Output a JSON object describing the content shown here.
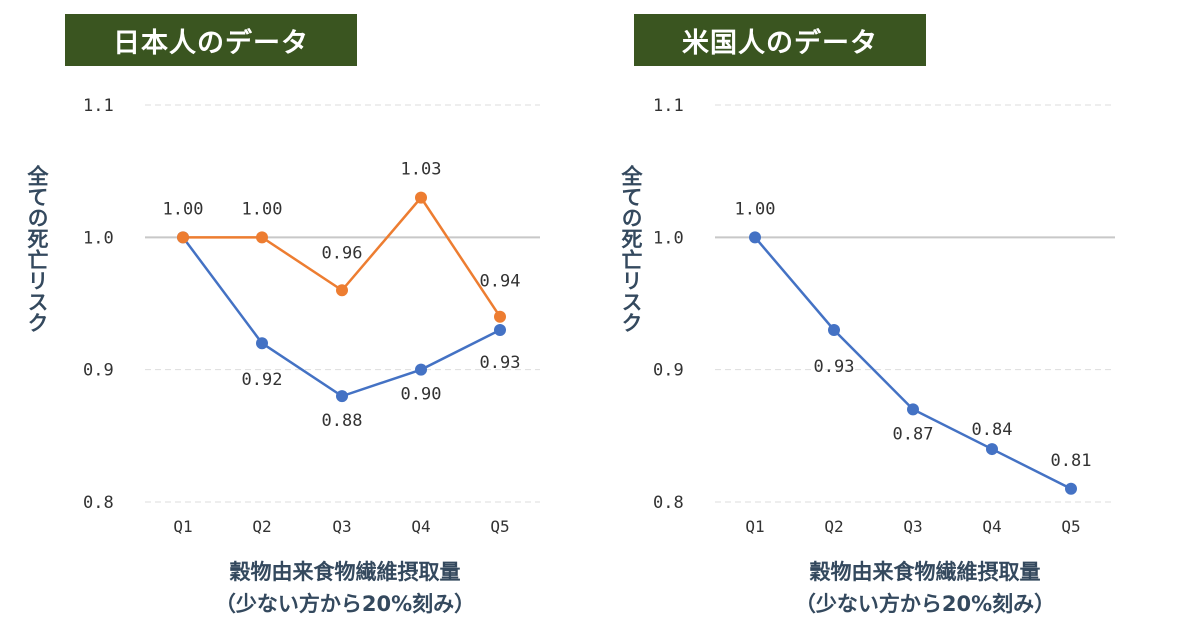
{
  "chart_data": [
    {
      "type": "line",
      "title": "日本人のデータ",
      "ylabel": "全ての死亡リスク",
      "xlabel": "穀物由来食物繊維摂取量",
      "xlabel_sub": "（少ない方から20%刻み）",
      "categories": [
        "Q1",
        "Q2",
        "Q3",
        "Q4",
        "Q5"
      ],
      "ylim": [
        0.8,
        1.1
      ],
      "yticks": [
        "0.8",
        "0.9",
        "1.0",
        "1.1"
      ],
      "grid": true,
      "reference_line": 1.0,
      "series": [
        {
          "color": "#4472c4",
          "values": [
            1.0,
            0.92,
            0.88,
            0.9,
            0.93
          ],
          "labels": [
            "",
            "0.92",
            "0.88",
            "0.90",
            "0.93"
          ]
        },
        {
          "color": "#ed7d31",
          "values": [
            1.0,
            1.0,
            0.96,
            1.03,
            0.94
          ],
          "labels": [
            "1.00",
            "1.00",
            "0.96",
            "1.03",
            "0.94"
          ]
        }
      ]
    },
    {
      "type": "line",
      "title": "米国人のデータ",
      "ylabel": "全ての死亡リスク",
      "xlabel": "穀物由来食物繊維摂取量",
      "xlabel_sub": "（少ない方から20%刻み）",
      "categories": [
        "Q1",
        "Q2",
        "Q3",
        "Q4",
        "Q5"
      ],
      "ylim": [
        0.8,
        1.1
      ],
      "yticks": [
        "0.8",
        "0.9",
        "1.0",
        "1.1"
      ],
      "grid": true,
      "reference_line": 1.0,
      "series": [
        {
          "color": "#4472c4",
          "values": [
            1.0,
            0.93,
            0.87,
            0.84,
            0.81
          ],
          "labels": [
            "1.00",
            "0.93",
            "0.87",
            "0.84",
            "0.81"
          ]
        }
      ]
    }
  ]
}
